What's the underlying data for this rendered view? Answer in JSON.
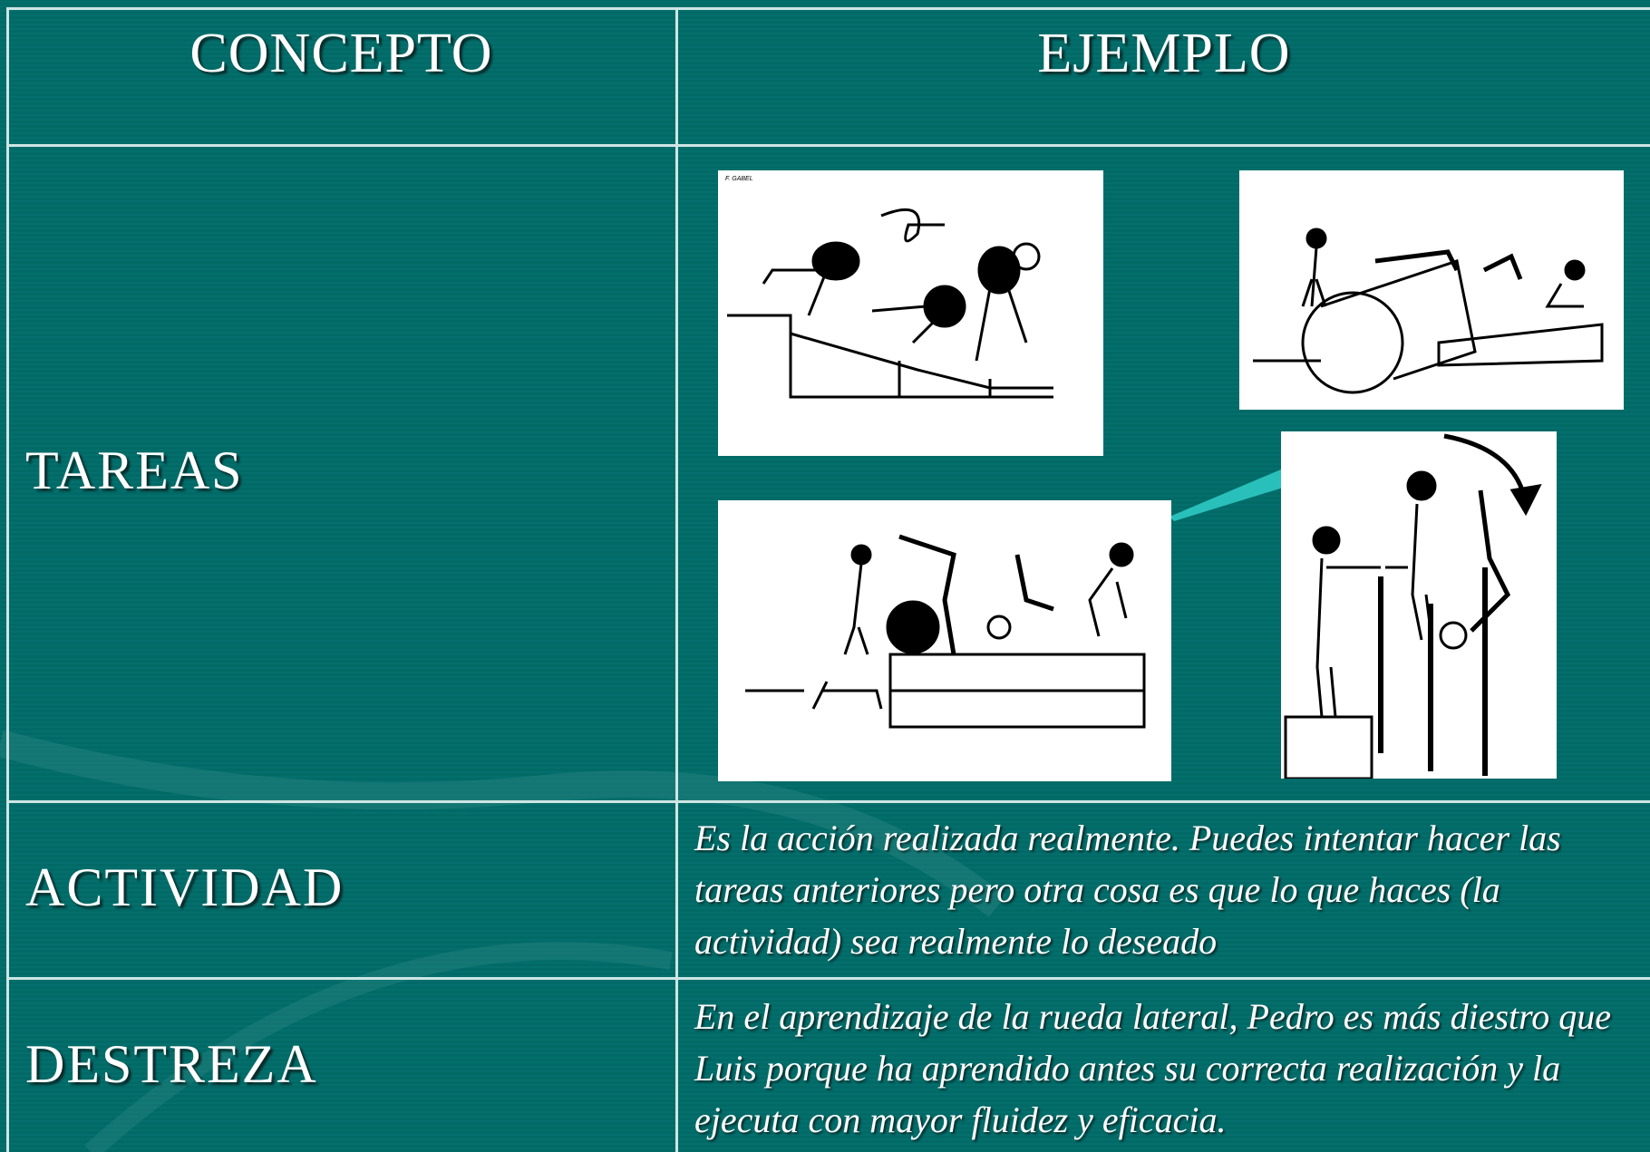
{
  "table": {
    "header": [
      "CONCEPTO",
      "EJEMPLO"
    ],
    "rows": [
      {
        "concept": "TAREAS",
        "image_credit": "F. GABEL"
      },
      {
        "concept": "ACTIVIDAD",
        "example": "Es la acción realizada realmente. Puedes intentar hacer las tareas anteriores pero otra cosa es que lo que haces (la actividad) sea realmente lo deseado"
      },
      {
        "concept": "DESTREZA",
        "example": "En el aprendizaje de la rueda lateral, Pedro es más diestro que Luis porque ha aprendido antes su correcta realización y la ejecuta con mayor fluidez y eficacia."
      }
    ]
  }
}
